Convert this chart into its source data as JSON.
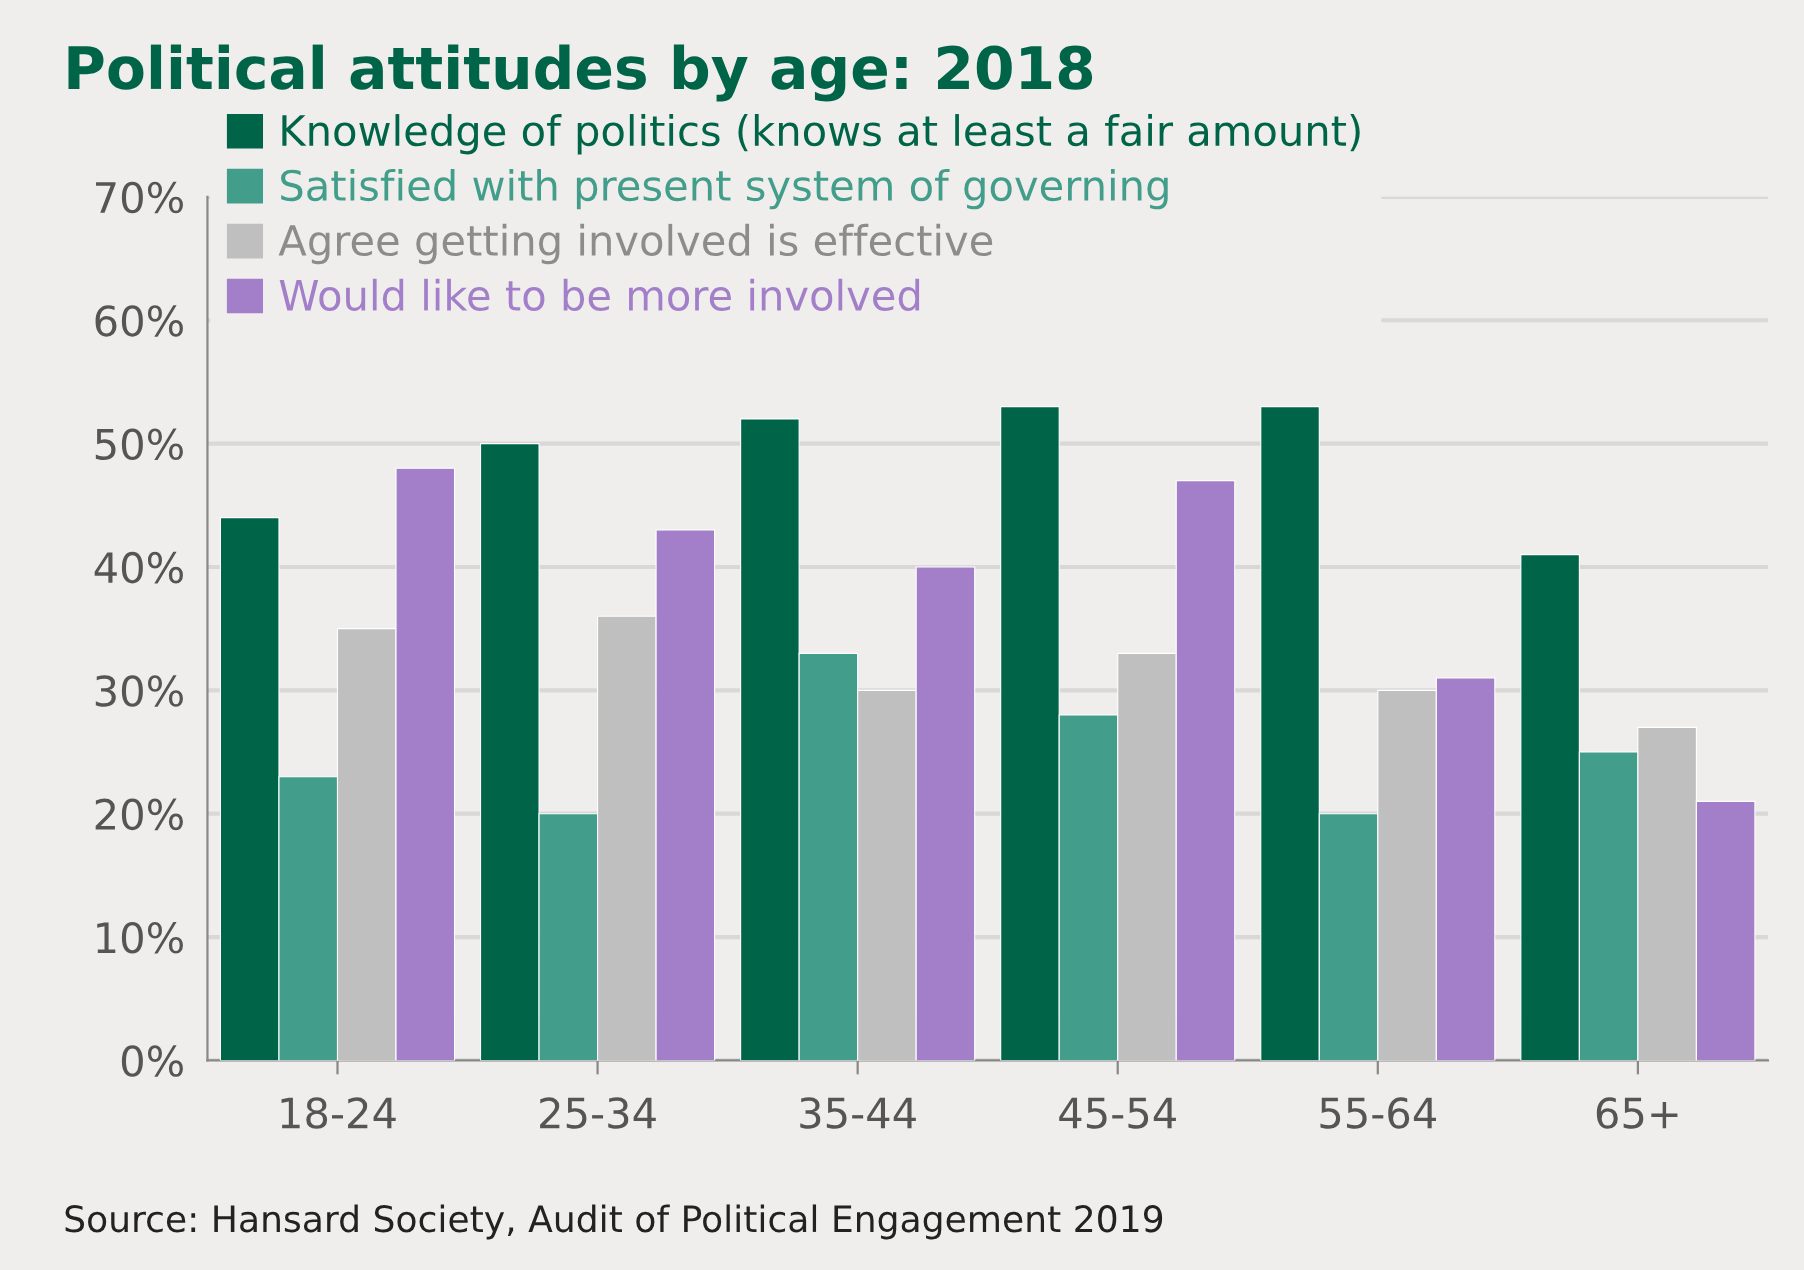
{
  "chart_data": {
    "type": "bar",
    "title": "Political attitudes by age: 2018",
    "categories": [
      "18-24",
      "25-34",
      "35-44",
      "45-54",
      "55-64",
      "65+"
    ],
    "series": [
      {
        "name": "Knowledge of politics (knows at least a fair amount)",
        "color": "#006548",
        "values": [
          44,
          50,
          52,
          53,
          53,
          41
        ]
      },
      {
        "name": "Satisfied with present system of governing",
        "color": "#429e8a",
        "values": [
          23,
          20,
          33,
          28,
          20,
          25
        ]
      },
      {
        "name": "Agree getting involved is effective",
        "color": "#bfbfbf",
        "values": [
          35,
          36,
          30,
          33,
          30,
          27
        ]
      },
      {
        "name": "Would like to be more involved",
        "color": "#a37fc9",
        "values": [
          48,
          43,
          40,
          47,
          31,
          21
        ]
      }
    ],
    "ylim": [
      0,
      70
    ],
    "yticks": [
      {
        "value": 0,
        "label": "0%"
      },
      {
        "value": 10,
        "label": "10%"
      },
      {
        "value": 20,
        "label": "20%"
      },
      {
        "value": 30,
        "label": "30%"
      },
      {
        "value": 40,
        "label": "40%"
      },
      {
        "value": 50,
        "label": "50%"
      },
      {
        "value": 60,
        "label": "60%"
      },
      {
        "value": 70,
        "label": "70%"
      }
    ],
    "grid": "y",
    "legend": "top left",
    "annotations": [
      "Source: Hansard Society, Audit of Political Engagement 2019"
    ]
  }
}
